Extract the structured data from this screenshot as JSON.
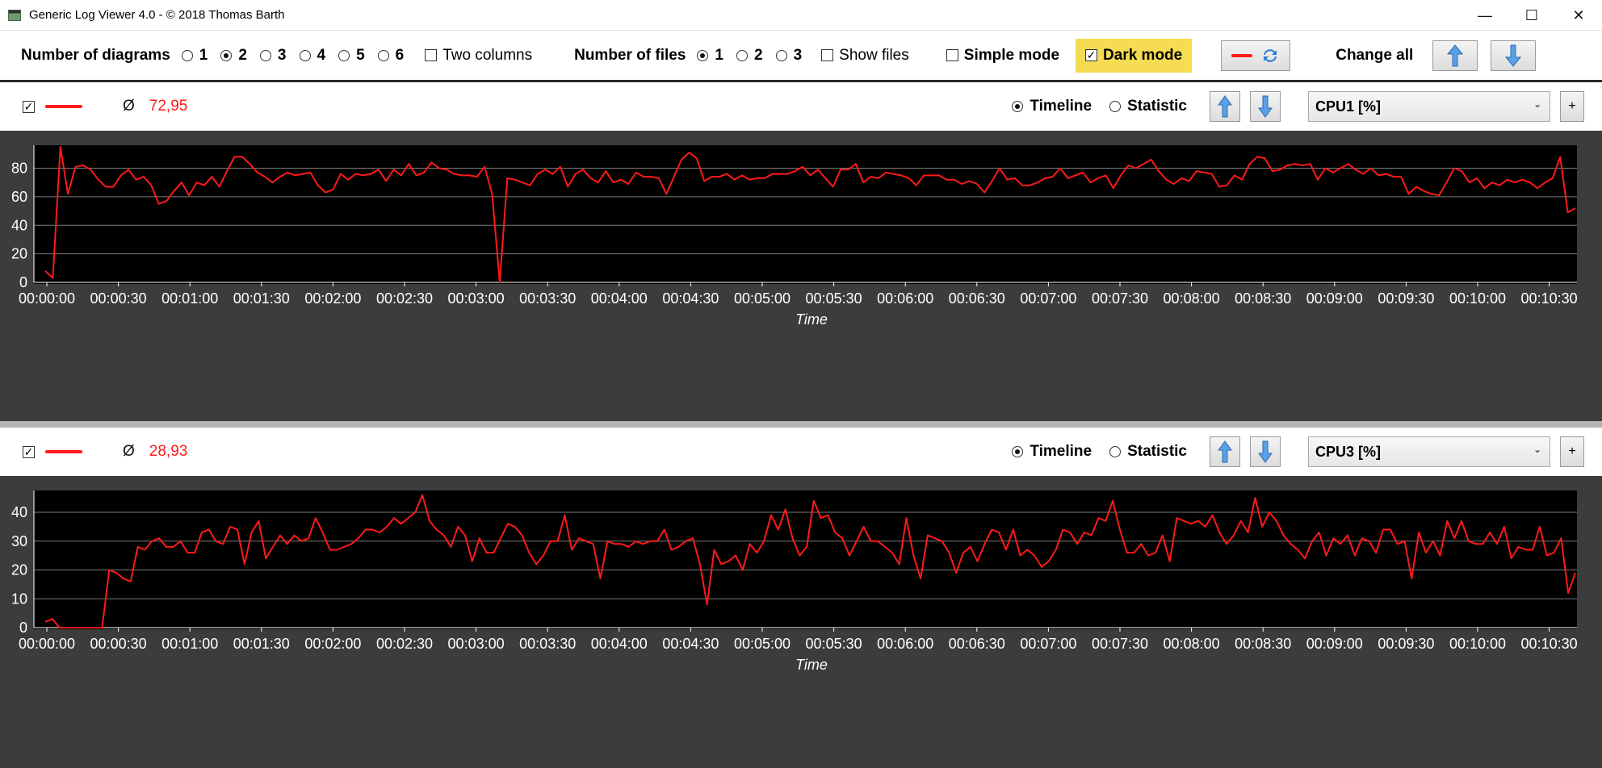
{
  "window": {
    "title": "Generic Log Viewer 4.0 - © 2018 Thomas Barth",
    "minimize": "—",
    "maximize": "☐",
    "close": "✕"
  },
  "toolbar": {
    "diagrams_label": "Number of diagrams",
    "diagram_options": [
      "1",
      "2",
      "3",
      "4",
      "5",
      "6"
    ],
    "diagram_selected": "2",
    "two_columns_label": "Two columns",
    "two_columns_checked": false,
    "files_label": "Number of files",
    "file_options": [
      "1",
      "2",
      "3"
    ],
    "file_selected": "1",
    "show_files_label": "Show files",
    "show_files_checked": false,
    "simple_mode_label": "Simple mode",
    "simple_mode_checked": false,
    "dark_mode_label": "Dark mode",
    "dark_mode_checked": true,
    "change_all_label": "Change all",
    "accent_yellow": "#f5dc52"
  },
  "diagrams": [
    {
      "enabled": true,
      "avg_symbol": "Ø",
      "avg_value": "72,95",
      "mode_timeline": "Timeline",
      "mode_statistic": "Statistic",
      "mode_selected": "Timeline",
      "selected_signal": "CPU1 [%]",
      "add_button": "+"
    },
    {
      "enabled": true,
      "avg_symbol": "Ø",
      "avg_value": "28,93",
      "mode_timeline": "Timeline",
      "mode_statistic": "Statistic",
      "mode_selected": "Timeline",
      "selected_signal": "CPU3 [%]",
      "add_button": "+"
    }
  ],
  "chart_data": [
    {
      "type": "line",
      "title": "",
      "xlabel": "Time",
      "ylabel": "",
      "line_color": "#ff1a1a",
      "background": "#000000",
      "grid": true,
      "ylim": [
        0,
        95
      ],
      "yticks": [
        0,
        20,
        40,
        60,
        80
      ],
      "xticks": [
        "00:00:00",
        "00:00:30",
        "00:01:00",
        "00:01:30",
        "00:02:00",
        "00:02:30",
        "00:03:00",
        "00:03:30",
        "00:04:00",
        "00:04:30",
        "00:05:00",
        "00:05:30",
        "00:06:00",
        "00:06:30",
        "00:07:00",
        "00:07:30",
        "00:08:00",
        "00:08:30",
        "00:09:00",
        "00:09:30",
        "00:10:00",
        "00:10:30"
      ],
      "x_seconds_max": 660,
      "series": [
        {
          "values": [
            8,
            3,
            95,
            62,
            81,
            82,
            79,
            72,
            67,
            67,
            75,
            79,
            72,
            74,
            68,
            55,
            57,
            64,
            70,
            61,
            70,
            68,
            74,
            67,
            78,
            88,
            88,
            83,
            77,
            74,
            70,
            74,
            77,
            75,
            76,
            77,
            68,
            63,
            65,
            76,
            72,
            76,
            75,
            76,
            79,
            71,
            79,
            75,
            83,
            75,
            77,
            84,
            80,
            79,
            76,
            75,
            75,
            74,
            81,
            62,
            0,
            73,
            72,
            70,
            68,
            76,
            79,
            76,
            81,
            67,
            76,
            79,
            73,
            70,
            78,
            70,
            72,
            69,
            77,
            74,
            74,
            73,
            62,
            74,
            86,
            91,
            87,
            71,
            74,
            74,
            76,
            72,
            75,
            72,
            73,
            73,
            76,
            76,
            76,
            78,
            81,
            75,
            79,
            73,
            67,
            79,
            79,
            83,
            70,
            74,
            73,
            77,
            76,
            75,
            73,
            68,
            75,
            75,
            75,
            72,
            72,
            69,
            71,
            69,
            63,
            71,
            80,
            72,
            73,
            68,
            68,
            70,
            73,
            74,
            80,
            73,
            75,
            77,
            70,
            73,
            75,
            66,
            75,
            82,
            80,
            83,
            86,
            78,
            72,
            69,
            73,
            71,
            78,
            77,
            76,
            67,
            68,
            75,
            72,
            83,
            88,
            87,
            78,
            79,
            82,
            83,
            82,
            83,
            72,
            80,
            77,
            80,
            83,
            79,
            76,
            80,
            75,
            76,
            74,
            74,
            62,
            67,
            64,
            62,
            61,
            70,
            80,
            78,
            70,
            73,
            66,
            70,
            68,
            72,
            70,
            72,
            70,
            66,
            70,
            73,
            88,
            49,
            52
          ]
        }
      ]
    },
    {
      "type": "line",
      "title": "",
      "xlabel": "Time",
      "ylabel": "",
      "line_color": "#ff1a1a",
      "background": "#000000",
      "grid": true,
      "ylim": [
        0,
        47
      ],
      "yticks": [
        0,
        10,
        20,
        30,
        40
      ],
      "xticks": [
        "00:00:00",
        "00:00:30",
        "00:01:00",
        "00:01:30",
        "00:02:00",
        "00:02:30",
        "00:03:00",
        "00:03:30",
        "00:04:00",
        "00:04:30",
        "00:05:00",
        "00:05:30",
        "00:06:00",
        "00:06:30",
        "00:07:00",
        "00:07:30",
        "00:08:00",
        "00:08:30",
        "00:09:00",
        "00:09:30",
        "00:10:00",
        "00:10:30"
      ],
      "x_seconds_max": 660,
      "series": [
        {
          "values": [
            2,
            3,
            0,
            0,
            0,
            0,
            0,
            0,
            0,
            20,
            19,
            17,
            16,
            28,
            27,
            30,
            31,
            28,
            28,
            30,
            26,
            26,
            33,
            34,
            30,
            29,
            35,
            34,
            22,
            33,
            37,
            24,
            28,
            32,
            29,
            32,
            30,
            31,
            38,
            33,
            27,
            27,
            28,
            29,
            31,
            34,
            34,
            33,
            35,
            38,
            36,
            38,
            40,
            46,
            37,
            34,
            32,
            28,
            35,
            32,
            23,
            31,
            26,
            26,
            31,
            36,
            35,
            32,
            26,
            22,
            25,
            30,
            30,
            39,
            27,
            31,
            30,
            29,
            17,
            30,
            29,
            29,
            28,
            30,
            29,
            30,
            30,
            34,
            27,
            28,
            30,
            31,
            22,
            8,
            27,
            22,
            23,
            25,
            20,
            29,
            26,
            30,
            39,
            34,
            41,
            31,
            25,
            28,
            44,
            38,
            39,
            33,
            31,
            25,
            30,
            35,
            30,
            30,
            28,
            26,
            22,
            38,
            25,
            17,
            32,
            31,
            30,
            26,
            19,
            26,
            28,
            23,
            29,
            34,
            33,
            27,
            34,
            25,
            27,
            25,
            21,
            23,
            27,
            34,
            33,
            29,
            33,
            32,
            38,
            37,
            44,
            34,
            26,
            26,
            29,
            25,
            26,
            32,
            23,
            38,
            37,
            36,
            37,
            35,
            39,
            33,
            29,
            32,
            37,
            33,
            45,
            35,
            40,
            37,
            32,
            29,
            27,
            24,
            30,
            33,
            25,
            31,
            29,
            32,
            25,
            31,
            30,
            26,
            34,
            34,
            29,
            30,
            17,
            33,
            26,
            30,
            25,
            37,
            31,
            37,
            30,
            29,
            29,
            33,
            29,
            35,
            24,
            28,
            27,
            27,
            35,
            25,
            26,
            31,
            12,
            19
          ]
        }
      ]
    }
  ]
}
